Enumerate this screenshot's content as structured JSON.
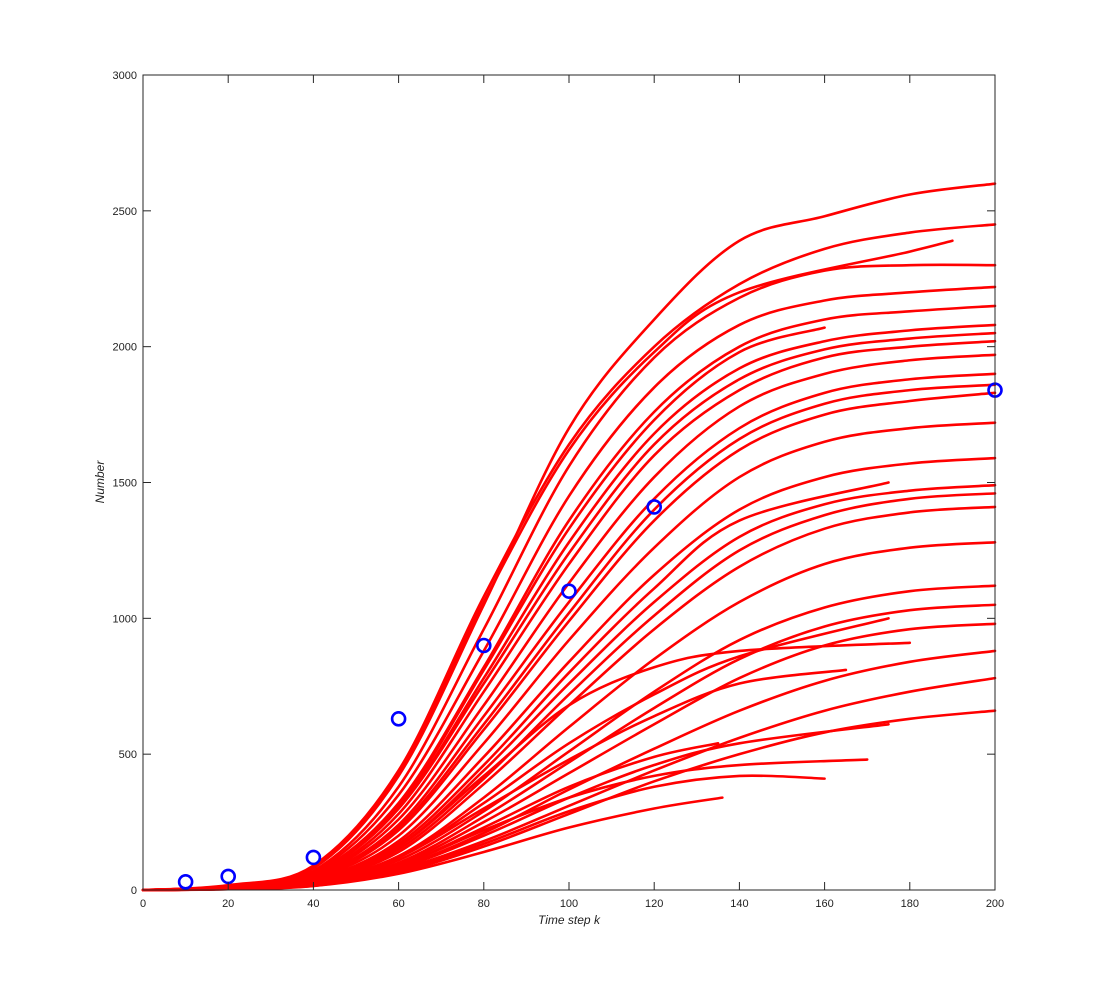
{
  "chart_data": {
    "type": "line",
    "title": "",
    "xlabel": "Time step k",
    "ylabel": "Number",
    "xlim": [
      0,
      200
    ],
    "ylim": [
      0,
      3000
    ],
    "xticks": [
      0,
      20,
      40,
      60,
      80,
      100,
      120,
      140,
      160,
      180,
      200
    ],
    "yticks": [
      0,
      500,
      1000,
      1500,
      2000,
      2500,
      3000
    ],
    "grid": false,
    "legend": "none",
    "colors": {
      "simulations": "#ff0000",
      "observed": "#0000ff"
    },
    "simulated_trajectories": [
      {
        "x": [
          0,
          20,
          40,
          60,
          80,
          100,
          120,
          140,
          160,
          180,
          200
        ],
        "y": [
          0,
          15,
          80,
          420,
          1050,
          1700,
          2100,
          2390,
          2480,
          2560,
          2600
        ]
      },
      {
        "x": [
          0,
          20,
          40,
          60,
          80,
          100,
          120,
          140,
          160,
          180,
          200
        ],
        "y": [
          0,
          18,
          90,
          440,
          1080,
          1640,
          2000,
          2230,
          2360,
          2420,
          2450
        ]
      },
      {
        "x": [
          0,
          20,
          40,
          60,
          80,
          100,
          120,
          140,
          160,
          180,
          200
        ],
        "y": [
          0,
          14,
          70,
          380,
          960,
          1560,
          1960,
          2180,
          2280,
          2300,
          2300
        ]
      },
      {
        "x": [
          0,
          20,
          40,
          60,
          80,
          100,
          120,
          140,
          160,
          180,
          200
        ],
        "y": [
          0,
          12,
          65,
          350,
          880,
          1450,
          1850,
          2080,
          2170,
          2200,
          2220
        ]
      },
      {
        "x": [
          0,
          20,
          40,
          60,
          80,
          100,
          120,
          140,
          160,
          180,
          200
        ],
        "y": [
          0,
          12,
          60,
          320,
          820,
          1360,
          1760,
          2000,
          2100,
          2130,
          2150
        ]
      },
      {
        "x": [
          0,
          20,
          40,
          60,
          80,
          100,
          120,
          140,
          160,
          180,
          200
        ],
        "y": [
          0,
          10,
          55,
          300,
          780,
          1280,
          1680,
          1920,
          2020,
          2060,
          2080
        ]
      },
      {
        "x": [
          0,
          20,
          40,
          60,
          80,
          100,
          120,
          140,
          160,
          180,
          200
        ],
        "y": [
          0,
          10,
          50,
          280,
          730,
          1200,
          1600,
          1840,
          1960,
          2000,
          2020
        ]
      },
      {
        "x": [
          0,
          20,
          40,
          60,
          80,
          100,
          120,
          140,
          160,
          180,
          200
        ],
        "y": [
          0,
          9,
          48,
          260,
          680,
          1130,
          1520,
          1780,
          1900,
          1950,
          1970
        ]
      },
      {
        "x": [
          0,
          20,
          40,
          60,
          80,
          100,
          120,
          140,
          160,
          180,
          200
        ],
        "y": [
          0,
          9,
          45,
          240,
          640,
          1060,
          1440,
          1700,
          1830,
          1880,
          1900
        ]
      },
      {
        "x": [
          0,
          20,
          40,
          60,
          80,
          100,
          120,
          140,
          160,
          180,
          200
        ],
        "y": [
          0,
          8,
          42,
          220,
          590,
          990,
          1360,
          1620,
          1750,
          1800,
          1830
        ]
      },
      {
        "x": [
          0,
          20,
          40,
          60,
          80,
          100,
          120,
          140,
          160,
          180,
          200
        ],
        "y": [
          0,
          8,
          40,
          200,
          540,
          920,
          1260,
          1520,
          1650,
          1700,
          1720
        ]
      },
      {
        "x": [
          0,
          20,
          40,
          60,
          80,
          100,
          120,
          140,
          160,
          180,
          200
        ],
        "y": [
          0,
          7,
          36,
          180,
          490,
          840,
          1160,
          1400,
          1520,
          1570,
          1590
        ]
      },
      {
        "x": [
          0,
          20,
          40,
          60,
          80,
          100,
          120,
          140,
          160,
          180,
          200
        ],
        "y": [
          0,
          7,
          33,
          160,
          440,
          760,
          1060,
          1300,
          1420,
          1470,
          1490
        ]
      },
      {
        "x": [
          0,
          20,
          40,
          60,
          80,
          100,
          120,
          140,
          160,
          180,
          200
        ],
        "y": [
          0,
          6,
          30,
          140,
          390,
          680,
          960,
          1190,
          1330,
          1390,
          1410
        ]
      },
      {
        "x": [
          0,
          20,
          40,
          60,
          80,
          100,
          120,
          140,
          160,
          180,
          200
        ],
        "y": [
          0,
          6,
          28,
          125,
          340,
          600,
          850,
          1060,
          1200,
          1260,
          1280
        ]
      },
      {
        "x": [
          0,
          20,
          40,
          60,
          80,
          100,
          120,
          140,
          160,
          180,
          200
        ],
        "y": [
          0,
          5,
          25,
          110,
          290,
          510,
          730,
          920,
          1040,
          1100,
          1120
        ]
      },
      {
        "x": [
          0,
          20,
          40,
          60,
          80,
          100,
          120,
          140,
          160,
          180,
          200
        ],
        "y": [
          0,
          5,
          22,
          95,
          250,
          430,
          610,
          780,
          900,
          960,
          980
        ]
      },
      {
        "x": [
          0,
          20,
          40,
          60,
          80,
          100,
          120,
          140,
          160,
          180,
          200
        ],
        "y": [
          0,
          4,
          20,
          85,
          210,
          370,
          520,
          660,
          770,
          840,
          880
        ]
      },
      {
        "x": [
          0,
          20,
          40,
          60,
          80,
          100,
          120,
          140,
          160,
          180,
          200
        ],
        "y": [
          0,
          4,
          18,
          75,
          180,
          310,
          440,
          560,
          660,
          730,
          780
        ]
      },
      {
        "x": [
          0,
          20,
          40,
          60,
          80,
          100,
          120,
          140,
          160,
          180,
          200
        ],
        "y": [
          0,
          3,
          16,
          65,
          160,
          280,
          400,
          500,
          580,
          630,
          660
        ]
      },
      {
        "x": [
          0,
          10,
          20,
          40,
          60,
          80,
          100,
          120,
          136
        ],
        "y": [
          0,
          2,
          5,
          15,
          60,
          140,
          230,
          300,
          340
        ]
      },
      {
        "x": [
          0,
          20,
          40,
          60,
          80,
          100,
          120,
          140,
          160
        ],
        "y": [
          0,
          3,
          15,
          70,
          170,
          290,
          380,
          420,
          410
        ]
      },
      {
        "x": [
          0,
          20,
          40,
          60,
          80,
          100,
          120,
          140,
          170
        ],
        "y": [
          0,
          4,
          18,
          90,
          220,
          340,
          420,
          460,
          480
        ]
      },
      {
        "x": [
          0,
          20,
          40,
          60,
          80,
          100,
          120,
          140,
          165
        ],
        "y": [
          0,
          5,
          24,
          120,
          300,
          480,
          640,
          760,
          810
        ]
      },
      {
        "x": [
          0,
          20,
          40,
          60,
          80,
          100,
          120,
          140,
          180
        ],
        "y": [
          0,
          6,
          30,
          160,
          420,
          680,
          820,
          880,
          910
        ]
      },
      {
        "x": [
          0,
          20,
          40,
          60,
          80,
          100,
          120,
          140,
          160
        ],
        "y": [
          0,
          10,
          60,
          310,
          810,
          1330,
          1730,
          1980,
          2070
        ]
      },
      {
        "x": [
          0,
          20,
          40,
          60,
          80,
          100,
          120,
          140,
          180,
          190
        ],
        "y": [
          0,
          16,
          85,
          430,
          1060,
          1620,
          1980,
          2200,
          2350,
          2390
        ]
      },
      {
        "x": [
          0,
          20,
          40,
          60,
          80,
          100,
          120,
          140,
          175
        ],
        "y": [
          0,
          7,
          34,
          170,
          460,
          800,
          1110,
          1360,
          1500
        ]
      },
      {
        "x": [
          0,
          20,
          40,
          60,
          80,
          100,
          120,
          140,
          175
        ],
        "y": [
          0,
          5,
          26,
          120,
          320,
          540,
          720,
          860,
          1000
        ]
      },
      {
        "x": [
          0,
          20,
          40,
          60,
          80,
          100,
          120,
          135
        ],
        "y": [
          0,
          4,
          20,
          90,
          230,
          380,
          490,
          540
        ]
      },
      {
        "x": [
          0,
          20,
          40,
          60,
          80,
          100,
          120,
          140,
          175
        ],
        "y": [
          0,
          4,
          18,
          80,
          200,
          340,
          460,
          540,
          610
        ]
      },
      {
        "x": [
          0,
          20,
          40,
          60,
          80,
          100,
          120,
          140,
          160,
          180,
          200
        ],
        "y": [
          0,
          11,
          58,
          300,
          760,
          1240,
          1640,
          1880,
          1990,
          2030,
          2050
        ]
      },
      {
        "x": [
          0,
          20,
          40,
          60,
          80,
          100,
          120,
          140,
          160,
          180,
          200
        ],
        "y": [
          0,
          8,
          44,
          230,
          610,
          1020,
          1400,
          1660,
          1790,
          1840,
          1860
        ]
      },
      {
        "x": [
          0,
          20,
          40,
          60,
          80,
          100,
          120,
          140,
          160,
          180,
          200
        ],
        "y": [
          0,
          6,
          32,
          150,
          410,
          720,
          1010,
          1250,
          1380,
          1440,
          1460
        ]
      },
      {
        "x": [
          0,
          20,
          40,
          60,
          80,
          100,
          120,
          140,
          160,
          180,
          200
        ],
        "y": [
          0,
          5,
          24,
          100,
          270,
          470,
          670,
          850,
          970,
          1030,
          1050
        ]
      }
    ],
    "observed_points": {
      "x": [
        10,
        20,
        40,
        60,
        80,
        100,
        120,
        200
      ],
      "y": [
        30,
        50,
        120,
        630,
        900,
        1100,
        1410,
        1840
      ]
    }
  }
}
